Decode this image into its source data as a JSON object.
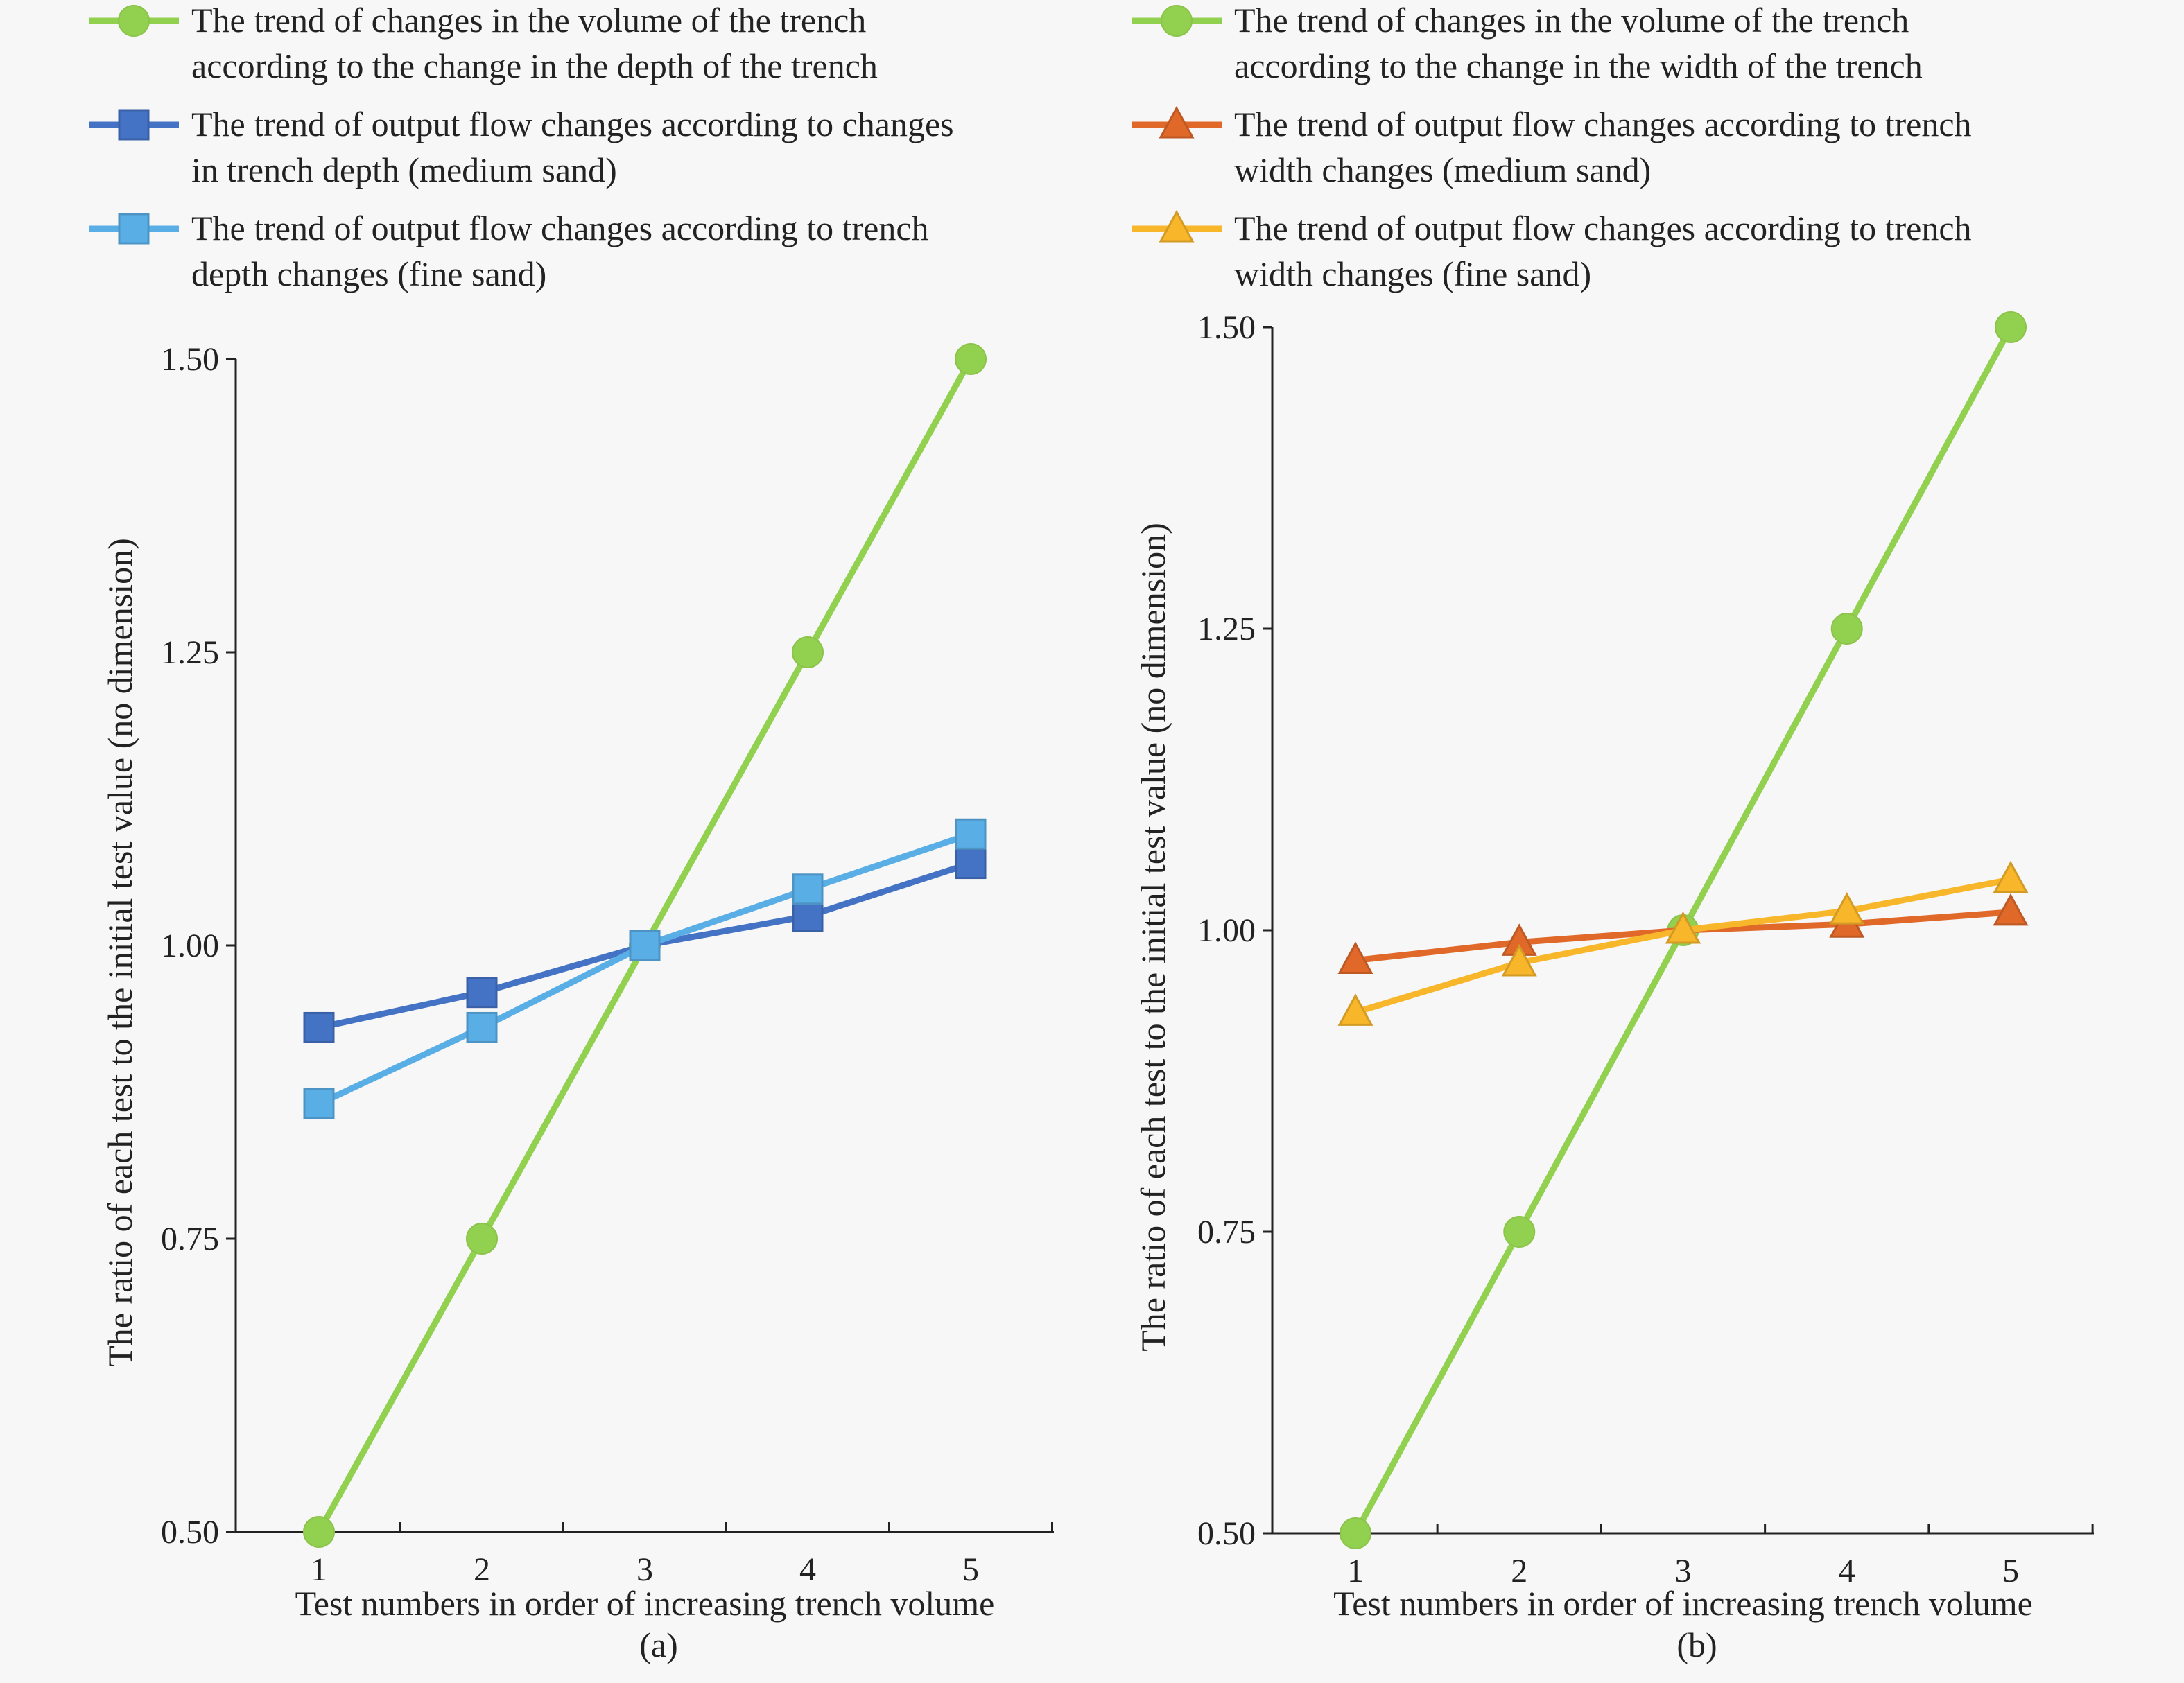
{
  "chart_data": [
    {
      "type": "line",
      "caption": "(a)",
      "xlabel": "Test numbers in order of increasing trench volume",
      "ylabel": "The ratio of each test to the initial test value (no dimension)",
      "x": [
        1,
        2,
        3,
        4,
        5
      ],
      "ylim": [
        0.5,
        1.5
      ],
      "yticks": [
        "0.50",
        "0.75",
        "1.00",
        "1.25",
        "1.50"
      ],
      "xticks": [
        "1",
        "2",
        "3",
        "4",
        "5"
      ],
      "grid": false,
      "legend_position": "top",
      "series": [
        {
          "name": "The trend of changes in the volume of the trench according to the change in the depth of the trench",
          "legend_lines": [
            "The trend of changes in the volume of the trench",
            "according to the change in the depth of the trench"
          ],
          "marker": "circle",
          "color": "#92d050",
          "values": [
            0.5,
            0.75,
            1.0,
            1.25,
            1.5
          ]
        },
        {
          "name": "The trend of output flow changes according to changes in trench depth (medium sand)",
          "legend_lines": [
            "The trend of output flow changes according to changes",
            "in trench depth (medium sand)"
          ],
          "marker": "square",
          "color": "#4472c4",
          "values": [
            0.93,
            0.96,
            1.0,
            1.025,
            1.07
          ]
        },
        {
          "name": "The trend of output flow changes according to trench depth changes (fine sand)",
          "legend_lines": [
            "The trend of output flow changes according to trench",
            "depth changes (fine sand)"
          ],
          "marker": "square",
          "color": "#5aaee6",
          "values": [
            0.865,
            0.93,
            1.0,
            1.048,
            1.095
          ]
        }
      ]
    },
    {
      "type": "line",
      "caption": "(b)",
      "xlabel": "Test numbers in order of increasing trench volume",
      "ylabel": "The ratio of each test to the initial test value (no dimension)",
      "x": [
        1,
        2,
        3,
        4,
        5
      ],
      "ylim": [
        0.5,
        1.5
      ],
      "yticks": [
        "0.50",
        "0.75",
        "1.00",
        "1.25",
        "1.50"
      ],
      "xticks": [
        "1",
        "2",
        "3",
        "4",
        "5"
      ],
      "grid": false,
      "legend_position": "top",
      "series": [
        {
          "name": "The trend of changes in the volume of the trench according to the change in the width of the trench",
          "legend_lines": [
            "The trend of changes in the volume of the trench",
            "according to the change in the width of the trench"
          ],
          "marker": "circle",
          "color": "#92d050",
          "values": [
            0.5,
            0.75,
            1.0,
            1.25,
            1.5
          ]
        },
        {
          "name": "The trend of output flow changes according to trench width changes (medium sand)",
          "legend_lines": [
            "The trend of output flow changes according to trench",
            "width changes (medium sand)"
          ],
          "marker": "triangle",
          "color": "#e0692a",
          "values": [
            0.975,
            0.99,
            1.0,
            1.005,
            1.015
          ]
        },
        {
          "name": "The trend of output flow changes according to trench width changes (fine sand)",
          "legend_lines": [
            "The trend of output flow changes according to trench",
            "width changes (fine sand)"
          ],
          "marker": "triangle",
          "color": "#f8b62a",
          "values": [
            0.932,
            0.973,
            1.0,
            1.016,
            1.042
          ]
        }
      ]
    }
  ]
}
